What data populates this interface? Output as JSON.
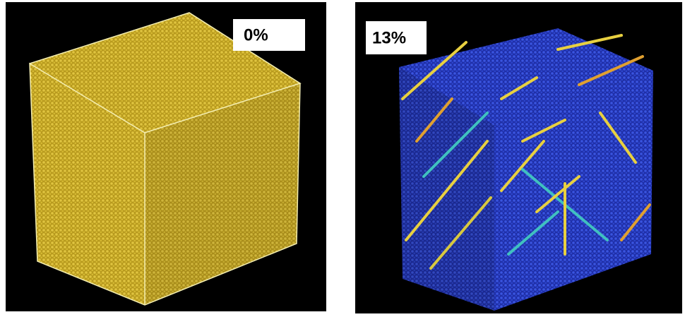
{
  "panels": [
    {
      "label": "0%"
    },
    {
      "label": "13%"
    }
  ]
}
